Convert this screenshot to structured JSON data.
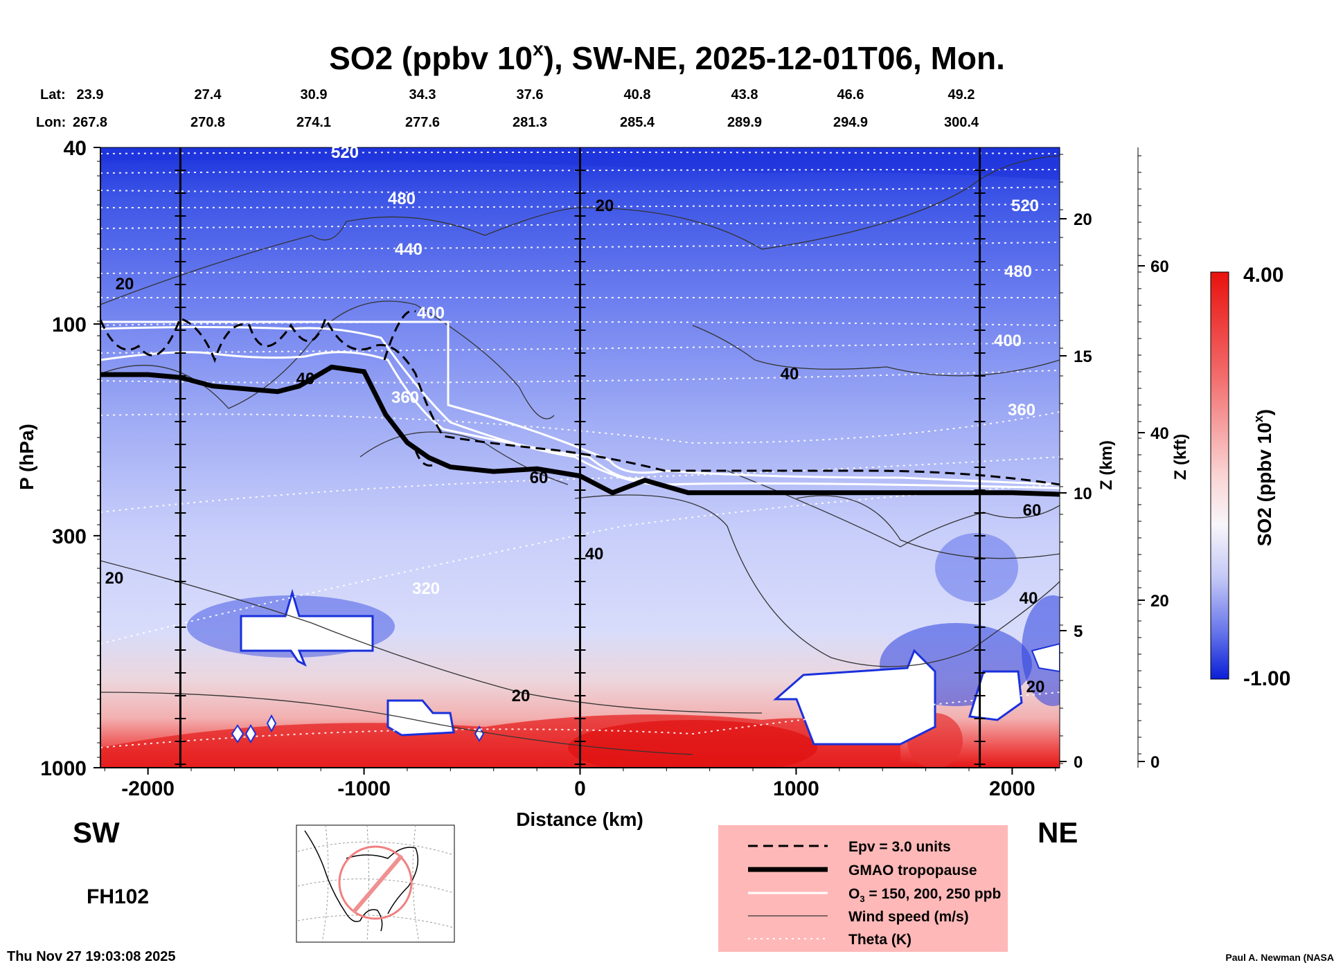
{
  "title": {
    "main": "SO2 (ppbv 10",
    "sup": "x",
    "rest": "), SW-NE, 2025-12-01T06, Mon."
  },
  "latlon": {
    "lat_label": "Lat:",
    "lon_label": "Lon:",
    "lat": [
      "23.9",
      "27.4",
      "30.9",
      "34.3",
      "37.6",
      "40.8",
      "43.8",
      "46.6",
      "49.2"
    ],
    "lon": [
      "267.8",
      "270.8",
      "274.1",
      "277.6",
      "281.3",
      "285.4",
      "289.9",
      "294.9",
      "300.4"
    ]
  },
  "axes": {
    "ylabel": "P (hPa)",
    "xlabel": "Distance (km)",
    "z_km_label": "Z (km)",
    "z_kft_label": "Z (kft)"
  },
  "corner": {
    "left": "SW",
    "right": "NE",
    "forecast": "FH102"
  },
  "footer": {
    "timestamp": "Thu Nov 27 19:03:08 2025",
    "credit": "Paul A. Newman (NASA"
  },
  "colorbar": {
    "max": "4.00",
    "min": "-1.00",
    "label_main": "SO2 (ppbv 10",
    "label_sup": "x",
    "label_end": ")"
  },
  "legend": {
    "items": [
      {
        "text": "Epv = 3.0 units"
      },
      {
        "text": "GMAO tropopause"
      },
      {
        "text": "O",
        "sub": "3",
        "rest": " = 150, 200, 250 ppb"
      },
      {
        "text": "Wind speed (m/s)"
      },
      {
        "text": "Theta (K)"
      }
    ]
  },
  "colors": {
    "low": "#0a1fd6",
    "mid": "#f4f4ff",
    "high": "#e8120e",
    "legend_bg": "#ffb8b8"
  },
  "chart_data": {
    "type": "heatmap",
    "title": "SO2 (ppbv 10x), SW-NE, 2025-12-01T06, Mon.",
    "xlabel": "Distance (km)",
    "ylabel": "P (hPa)",
    "x_ticks": [
      -2000,
      -1000,
      0,
      1000,
      2000
    ],
    "xlim": [
      -2220,
      2220
    ],
    "y_ticks": [
      40,
      100,
      300,
      1000
    ],
    "ylim": [
      1000,
      40
    ],
    "y_scale": "log",
    "z_km_ticks": [
      0,
      5,
      10,
      15,
      20
    ],
    "z_kft_ticks": [
      0,
      20,
      40,
      60
    ],
    "colorbar_range": [
      -1.0,
      4.0
    ],
    "section_lines_km": [
      -1850,
      0,
      1850
    ],
    "theta_labels_K": [
      520,
      480,
      440,
      400,
      360,
      320
    ],
    "wind_labels_ms": [
      20,
      40,
      60
    ],
    "tropopause": {
      "x": [
        -2220,
        -2000,
        -1850,
        -1700,
        -1400,
        -1300,
        -1150,
        -1000,
        -900,
        -800,
        -700,
        -600,
        -400,
        -200,
        0,
        150,
        300,
        500,
        1000,
        1500,
        2000,
        2220
      ],
      "p": [
        130,
        130,
        132,
        138,
        142,
        138,
        125,
        128,
        160,
        185,
        200,
        210,
        215,
        212,
        220,
        240,
        225,
        240,
        240,
        240,
        240,
        242
      ]
    },
    "grid": false
  }
}
